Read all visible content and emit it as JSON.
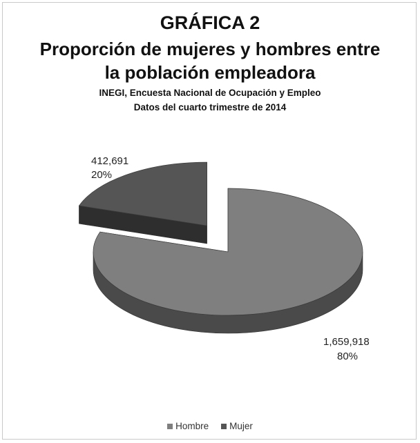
{
  "chart_data": {
    "type": "pie",
    "title_lines": [
      "GRÁFICA 2",
      "Proporción de mujeres y hombres entre",
      "la población empleadora"
    ],
    "subtitle_lines": [
      "INEGI, Encuesta Nacional de Ocupación y Empleo",
      "Datos del cuarto trimestre de 2014"
    ],
    "slices": [
      {
        "name": "Hombre",
        "value": 1659918,
        "value_label": "1,659,918",
        "percent_label": "80%",
        "color": "#7f7f7f",
        "side_color": "#4a4a4a"
      },
      {
        "name": "Mujer",
        "value": 412691,
        "value_label": "412,691",
        "percent_label": "20%",
        "color": "#555555",
        "side_color": "#2e2e2e"
      }
    ],
    "exploded": "Mujer",
    "style": "3d",
    "legend": {
      "position": "bottom",
      "entries": [
        "Hombre",
        "Mujer"
      ]
    }
  }
}
